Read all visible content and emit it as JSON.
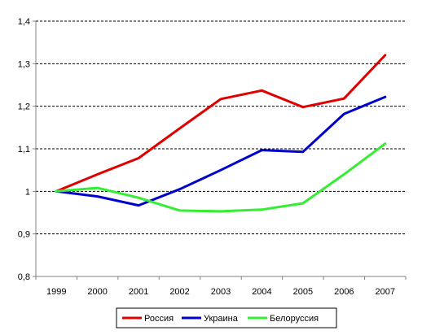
{
  "chart_data": {
    "type": "line",
    "title": "",
    "xlabel": "",
    "ylabel": "",
    "categories": [
      "1999",
      "2000",
      "2001",
      "2002",
      "2003",
      "2004",
      "2005",
      "2006",
      "2007"
    ],
    "ylim": [
      0.8,
      1.4
    ],
    "yticks": [
      0.8,
      0.9,
      1.0,
      1.1,
      1.2,
      1.3,
      1.4
    ],
    "ytick_labels": [
      "0,8",
      "0,9",
      "1",
      "1,1",
      "1,2",
      "1,3",
      "1,4"
    ],
    "grid": "horizontal dashed",
    "legend_position": "bottom",
    "series": [
      {
        "name": "Россия",
        "color": "#e00000",
        "values": [
          1.0,
          1.04,
          1.078,
          1.148,
          1.217,
          1.237,
          1.198,
          1.218,
          1.32
        ]
      },
      {
        "name": "Украина",
        "color": "#0000cc",
        "values": [
          1.0,
          0.988,
          0.967,
          1.005,
          1.05,
          1.097,
          1.093,
          1.182,
          1.222
        ]
      },
      {
        "name": "Белоруссия",
        "color": "#33ee33",
        "values": [
          1.0,
          1.008,
          0.985,
          0.955,
          0.953,
          0.957,
          0.972,
          1.04,
          1.112
        ]
      }
    ]
  }
}
